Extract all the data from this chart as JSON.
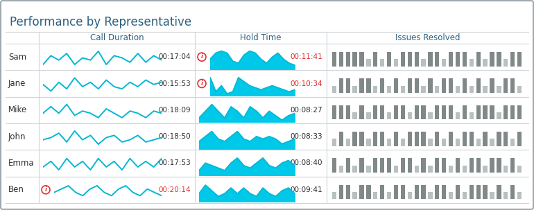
{
  "title": "Performance by Representative",
  "title_color": "#2c6080",
  "bg_color": "#ffffff",
  "border_color": "#a0aab0",
  "col_header_color": "#2c6080",
  "row_names": [
    "Sam",
    "Jane",
    "Mike",
    "John",
    "Emma",
    "Ben"
  ],
  "col_headers": [
    "Call Duration",
    "Hold Time",
    "Issues Resolved"
  ],
  "call_duration_values": [
    "00:17:04",
    "00:15:53",
    "00:18:09",
    "00:18:50",
    "00:17:53",
    "00:20:14"
  ],
  "hold_time_values": [
    "00:11:41",
    "00:10:34",
    "00:08:27",
    "00:08:33",
    "00:08:40",
    "00:09:41"
  ],
  "call_duration_red": [
    false,
    false,
    false,
    false,
    false,
    true
  ],
  "hold_time_red": [
    true,
    true,
    false,
    false,
    false,
    false
  ],
  "sparkline_color": "#00b8d4",
  "area_fill_color": "#00c8e8",
  "warn_color": "#e03030",
  "sep_color": "#d0d4d8",
  "name_color": "#303030",
  "value_color": "#303030",
  "sparkline_data": [
    [
      3,
      7,
      5,
      8,
      3,
      6,
      5,
      9,
      3,
      7,
      6,
      4,
      8,
      4,
      7,
      5
    ],
    [
      5,
      2,
      6,
      3,
      8,
      4,
      6,
      3,
      7,
      4,
      3,
      6,
      4,
      7,
      5,
      6
    ],
    [
      5,
      8,
      5,
      9,
      4,
      6,
      5,
      3,
      7,
      5,
      3,
      6,
      5,
      3,
      6,
      5
    ],
    [
      5,
      6,
      8,
      4,
      9,
      5,
      7,
      3,
      6,
      7,
      4,
      5,
      7,
      4,
      5,
      6
    ],
    [
      4,
      6,
      3,
      7,
      4,
      6,
      3,
      7,
      4,
      6,
      3,
      7,
      4,
      6,
      4,
      7
    ],
    [
      4,
      5,
      6,
      4,
      3,
      5,
      6,
      4,
      3,
      5,
      6,
      4,
      3,
      5,
      4,
      3
    ]
  ],
  "area_data": [
    [
      5,
      8,
      9,
      8,
      4,
      3,
      7,
      9,
      8,
      5,
      3,
      6,
      8,
      5,
      3,
      2
    ],
    [
      9,
      2,
      5,
      1,
      2,
      9,
      7,
      5,
      4,
      3,
      4,
      5,
      4,
      3,
      2,
      3
    ],
    [
      2,
      5,
      8,
      5,
      2,
      7,
      5,
      2,
      7,
      5,
      2,
      5,
      3,
      1,
      3,
      4
    ],
    [
      3,
      5,
      7,
      4,
      3,
      5,
      7,
      4,
      3,
      5,
      4,
      5,
      4,
      2,
      3,
      4
    ],
    [
      2,
      5,
      4,
      3,
      2,
      5,
      7,
      4,
      3,
      5,
      7,
      4,
      3,
      5,
      6,
      4
    ],
    [
      3,
      6,
      4,
      2,
      3,
      5,
      3,
      5,
      3,
      2,
      5,
      3,
      2,
      4,
      5,
      3
    ]
  ],
  "bar_data": [
    [
      2,
      2,
      2,
      2,
      2,
      1,
      2,
      1,
      2,
      1,
      2,
      2,
      2,
      1,
      2,
      2,
      1,
      2,
      2,
      2,
      1,
      2,
      1,
      2,
      2,
      1,
      2,
      2
    ],
    [
      1,
      2,
      2,
      1,
      2,
      2,
      1,
      2,
      1,
      2,
      1,
      2,
      2,
      1,
      2,
      1,
      2,
      2,
      1,
      2,
      1,
      2,
      1,
      2,
      1,
      2,
      2,
      1
    ],
    [
      2,
      2,
      2,
      1,
      2,
      1,
      2,
      2,
      1,
      2,
      2,
      1,
      2,
      2,
      1,
      2,
      2,
      2,
      1,
      2,
      1,
      2,
      2,
      2,
      1,
      2,
      2,
      2
    ],
    [
      1,
      2,
      1,
      2,
      2,
      1,
      2,
      2,
      1,
      2,
      1,
      2,
      2,
      2,
      1,
      2,
      1,
      2,
      1,
      2,
      2,
      1,
      2,
      1,
      2,
      2,
      1,
      2
    ],
    [
      2,
      1,
      2,
      1,
      2,
      1,
      2,
      2,
      2,
      1,
      2,
      2,
      1,
      2,
      1,
      2,
      2,
      1,
      2,
      1,
      2,
      2,
      1,
      2,
      2,
      1,
      2,
      1
    ],
    [
      1,
      2,
      2,
      1,
      2,
      2,
      1,
      2,
      1,
      2,
      2,
      1,
      2,
      2,
      1,
      2,
      2,
      1,
      2,
      1,
      2,
      2,
      2,
      1,
      2,
      1,
      2,
      1
    ]
  ],
  "bar_color_tall": "#808888",
  "bar_color_short": "#b8c0c0",
  "title_fontsize": 12,
  "header_fontsize": 8.5,
  "name_fontsize": 8.5,
  "value_fontsize": 7.5
}
